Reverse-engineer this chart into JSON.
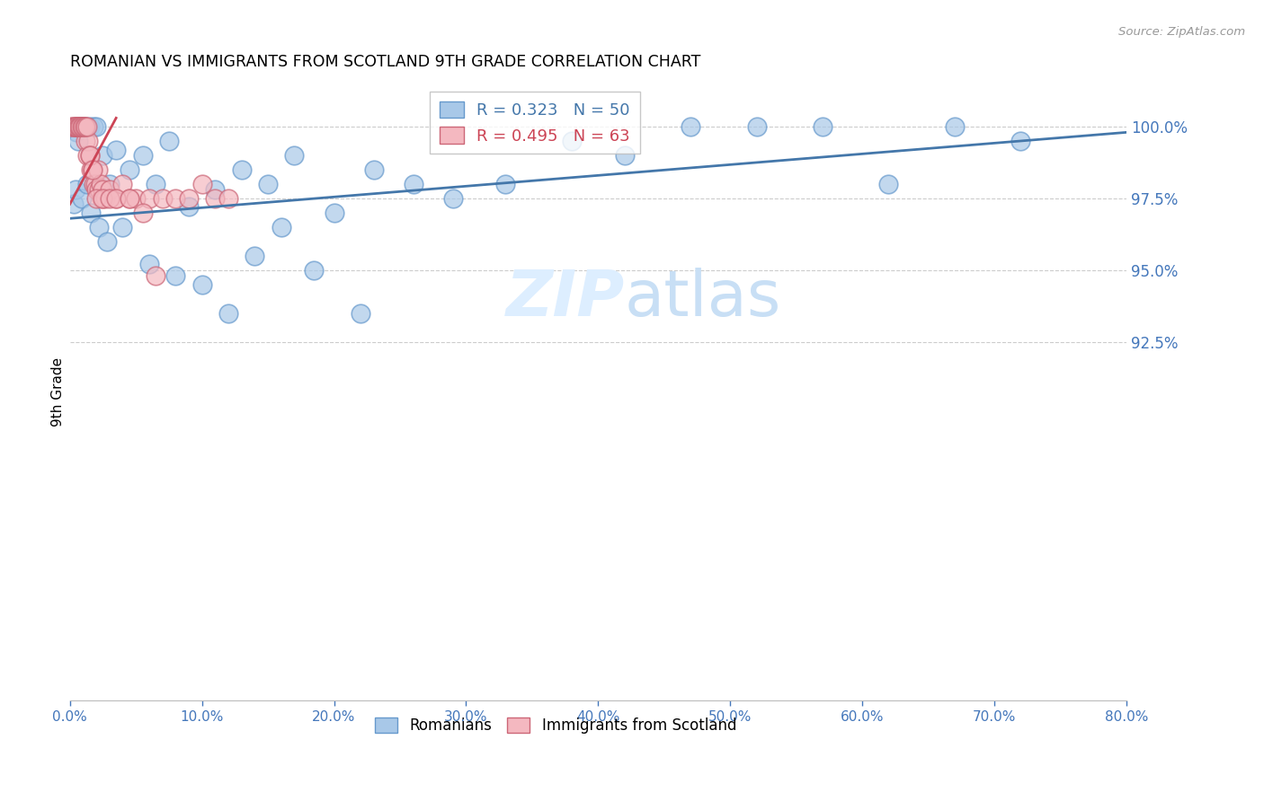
{
  "title": "ROMANIAN VS IMMIGRANTS FROM SCOTLAND 9TH GRADE CORRELATION CHART",
  "source": "Source: ZipAtlas.com",
  "ylabel_label": "9th Grade",
  "blue_label": "Romanians",
  "pink_label": "Immigrants from Scotland",
  "blue_R": 0.323,
  "blue_N": 50,
  "pink_R": 0.495,
  "pink_N": 63,
  "blue_color": "#a8c8e8",
  "pink_color": "#f4b8c0",
  "blue_edge_color": "#6699cc",
  "pink_edge_color": "#cc6677",
  "blue_line_color": "#4477aa",
  "pink_line_color": "#cc4455",
  "watermark_color": "#ddeeff",
  "grid_color": "#cccccc",
  "tick_color": "#4477bb",
  "blue_x": [
    0.3,
    0.5,
    0.7,
    0.8,
    1.0,
    1.2,
    1.5,
    1.8,
    2.0,
    2.5,
    3.0,
    3.5,
    4.5,
    5.5,
    6.5,
    7.5,
    9.0,
    11.0,
    13.0,
    15.0,
    17.0,
    20.0,
    23.0,
    26.0,
    29.0,
    33.0,
    38.0,
    42.0,
    47.0,
    52.0,
    57.0,
    62.0,
    67.0,
    72.0,
    0.4,
    0.6,
    0.9,
    1.3,
    1.6,
    2.2,
    2.8,
    4.0,
    6.0,
    8.0,
    10.0,
    12.0,
    14.0,
    16.0,
    18.5,
    22.0
  ],
  "blue_y": [
    97.3,
    99.8,
    100.0,
    100.0,
    100.0,
    100.0,
    100.0,
    100.0,
    100.0,
    99.0,
    98.0,
    99.2,
    98.5,
    99.0,
    98.0,
    99.5,
    97.2,
    97.8,
    98.5,
    98.0,
    99.0,
    97.0,
    98.5,
    98.0,
    97.5,
    98.0,
    99.5,
    99.0,
    100.0,
    100.0,
    100.0,
    98.0,
    100.0,
    99.5,
    97.8,
    99.5,
    97.5,
    98.0,
    97.0,
    96.5,
    96.0,
    96.5,
    95.2,
    94.8,
    94.5,
    93.5,
    95.5,
    96.5,
    95.0,
    93.5
  ],
  "pink_x": [
    0.1,
    0.2,
    0.3,
    0.4,
    0.5,
    0.5,
    0.6,
    0.6,
    0.7,
    0.7,
    0.8,
    0.8,
    0.9,
    0.9,
    1.0,
    1.0,
    1.1,
    1.2,
    1.3,
    1.4,
    1.5,
    1.6,
    1.7,
    1.8,
    1.9,
    2.0,
    2.1,
    2.2,
    2.3,
    2.4,
    2.5,
    2.7,
    3.0,
    3.5,
    4.0,
    4.5,
    5.0,
    6.0,
    7.0,
    8.0,
    9.0,
    10.0,
    11.0,
    12.0,
    0.4,
    0.5,
    0.6,
    0.7,
    0.8,
    0.9,
    1.0,
    1.1,
    1.2,
    1.3,
    1.5,
    1.7,
    2.0,
    2.5,
    3.0,
    3.5,
    4.5,
    5.5,
    6.5
  ],
  "pink_y": [
    100.0,
    100.0,
    100.0,
    100.0,
    100.0,
    100.0,
    100.0,
    100.0,
    100.0,
    100.0,
    100.0,
    100.0,
    100.0,
    100.0,
    100.0,
    100.0,
    100.0,
    99.5,
    99.0,
    99.5,
    99.0,
    98.5,
    98.5,
    98.0,
    98.0,
    97.8,
    98.5,
    97.8,
    98.0,
    97.5,
    97.8,
    97.5,
    97.8,
    97.5,
    98.0,
    97.5,
    97.5,
    97.5,
    97.5,
    97.5,
    97.5,
    98.0,
    97.5,
    97.5,
    100.0,
    100.0,
    100.0,
    100.0,
    100.0,
    100.0,
    100.0,
    100.0,
    100.0,
    100.0,
    99.0,
    98.5,
    97.5,
    97.5,
    97.5,
    97.5,
    97.5,
    97.0,
    94.8
  ],
  "blue_trend_x": [
    0.0,
    80.0
  ],
  "blue_trend_y": [
    96.8,
    99.8
  ],
  "pink_trend_x": [
    0.0,
    3.5
  ],
  "pink_trend_y": [
    97.3,
    100.3
  ],
  "xlim": [
    0,
    80
  ],
  "ylim": [
    80,
    101.5
  ],
  "xticks": [
    0,
    10,
    20,
    30,
    40,
    50,
    60,
    70,
    80
  ],
  "xticklabels": [
    "0.0%",
    "10.0%",
    "20.0%",
    "30.0%",
    "40.0%",
    "50.0%",
    "60.0%",
    "70.0%",
    "80.0%"
  ],
  "yticks_right": [
    92.5,
    95.0,
    97.5,
    100.0
  ],
  "yticklabels_right": [
    "92.5%",
    "95.0%",
    "97.5%",
    "100.0%"
  ],
  "hgrid_vals": [
    92.5,
    95.0,
    97.5,
    100.0
  ]
}
